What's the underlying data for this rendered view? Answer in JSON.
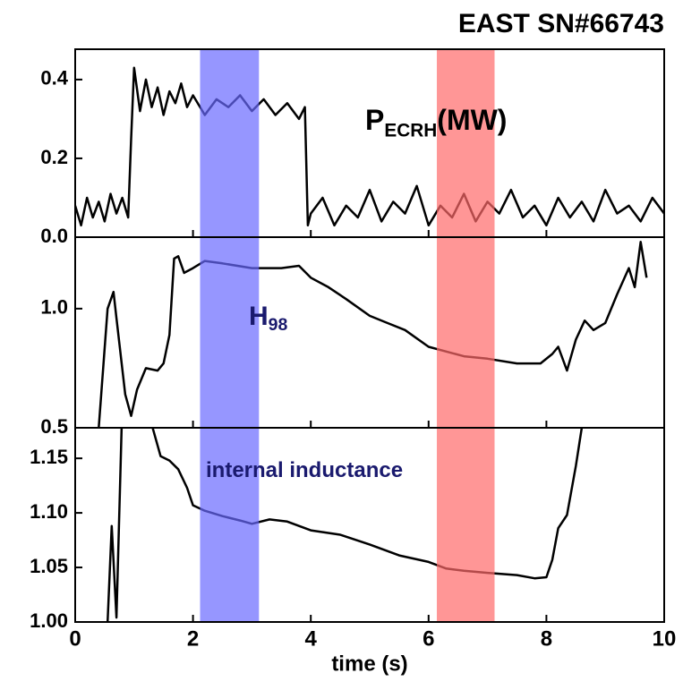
{
  "chart_data": [
    {
      "type": "line",
      "title": "EAST SN#66743",
      "annotation": {
        "text": "P",
        "sub": "ECRH",
        "after": "(MW)",
        "color": "#000000"
      },
      "xlim": [
        0,
        10
      ],
      "xticks": [
        0,
        2,
        4,
        6,
        8,
        10
      ],
      "ylim": [
        0,
        0.477
      ],
      "yticks": [
        {
          "value": 0,
          "label": "0.0"
        },
        0.2,
        0.4
      ],
      "spans": [
        {
          "x0": 2.12,
          "x1": 3.12,
          "color": "#6a6aff"
        },
        {
          "x0": 6.14,
          "x1": 7.12,
          "color": "#ff6a6a"
        }
      ],
      "series": [
        {
          "color": "#000000",
          "x": [
            0,
            0.1,
            0.2,
            0.3,
            0.4,
            0.5,
            0.6,
            0.7,
            0.8,
            0.9,
            0.95,
            1.0,
            1.1,
            1.2,
            1.3,
            1.4,
            1.5,
            1.6,
            1.7,
            1.8,
            1.9,
            2.0,
            2.2,
            2.4,
            2.6,
            2.8,
            3.0,
            3.2,
            3.4,
            3.6,
            3.8,
            3.9,
            3.95,
            4.0,
            4.2,
            4.4,
            4.6,
            4.8,
            5.0,
            5.2,
            5.4,
            5.6,
            5.8,
            6.0,
            6.2,
            6.4,
            6.6,
            6.8,
            7.0,
            7.2,
            7.4,
            7.6,
            7.8,
            8.0,
            8.2,
            8.4,
            8.6,
            8.8,
            9.0,
            9.2,
            9.4,
            9.6,
            9.8,
            10.0
          ],
          "values": [
            0.08,
            0.03,
            0.1,
            0.05,
            0.09,
            0.04,
            0.11,
            0.06,
            0.1,
            0.05,
            0.25,
            0.43,
            0.32,
            0.4,
            0.33,
            0.38,
            0.31,
            0.37,
            0.34,
            0.39,
            0.33,
            0.36,
            0.31,
            0.35,
            0.33,
            0.36,
            0.32,
            0.35,
            0.31,
            0.34,
            0.3,
            0.33,
            0.03,
            0.06,
            0.1,
            0.03,
            0.08,
            0.05,
            0.12,
            0.04,
            0.09,
            0.06,
            0.13,
            0.03,
            0.08,
            0.05,
            0.11,
            0.04,
            0.09,
            0.06,
            0.12,
            0.05,
            0.08,
            0.03,
            0.1,
            0.05,
            0.09,
            0.04,
            0.12,
            0.06,
            0.08,
            0.04,
            0.1,
            0.06
          ]
        }
      ]
    },
    {
      "type": "line",
      "annotation": {
        "text": "H",
        "sub": "98",
        "color": "#1a1a6e"
      },
      "xlim": [
        0,
        10
      ],
      "xticks": [
        0,
        2,
        4,
        6,
        8,
        10
      ],
      "ylim": [
        0.5,
        1.3
      ],
      "yticks": [
        0.5,
        {
          "value": 1,
          "label": "1.0"
        }
      ],
      "spans": [
        {
          "x0": 2.12,
          "x1": 3.12,
          "color": "#6a6aff"
        },
        {
          "x0": 6.14,
          "x1": 7.12,
          "color": "#ff6a6a"
        }
      ],
      "series": [
        {
          "color": "#000000",
          "x": [
            0.4,
            0.55,
            0.65,
            0.7,
            0.85,
            0.95,
            1.05,
            1.2,
            1.4,
            1.5,
            1.6,
            1.68,
            1.75,
            1.85,
            2.0,
            2.2,
            2.5,
            3.0,
            3.5,
            3.8,
            4.0,
            4.3,
            4.6,
            5.0,
            5.3,
            5.6,
            6.0,
            6.3,
            6.6,
            7.0,
            7.5,
            7.9,
            8.1,
            8.2,
            8.35,
            8.5,
            8.65,
            8.8,
            9.0,
            9.2,
            9.4,
            9.5,
            9.6,
            9.7
          ],
          "values": [
            0.5,
            1.0,
            1.07,
            0.96,
            0.64,
            0.55,
            0.66,
            0.75,
            0.74,
            0.77,
            0.89,
            1.21,
            1.22,
            1.15,
            1.17,
            1.2,
            1.19,
            1.17,
            1.17,
            1.18,
            1.13,
            1.09,
            1.04,
            0.97,
            0.94,
            0.91,
            0.84,
            0.82,
            0.8,
            0.79,
            0.77,
            0.77,
            0.81,
            0.84,
            0.74,
            0.87,
            0.95,
            0.91,
            0.94,
            1.06,
            1.17,
            1.09,
            1.28,
            1.13
          ]
        }
      ]
    },
    {
      "type": "line",
      "annotation": {
        "text": "internal inductance",
        "color": "#1a1a6e"
      },
      "xlabel": "time (s)",
      "xlim": [
        0,
        10
      ],
      "xticks": [
        0,
        2,
        4,
        6,
        8,
        10
      ],
      "ylim": [
        1.0,
        1.178
      ],
      "yticks": [
        {
          "value": 1,
          "label": "1.00"
        },
        1.05,
        {
          "value": 1.1,
          "label": "1.10"
        },
        1.15
      ],
      "spans": [
        {
          "x0": 2.12,
          "x1": 3.12,
          "color": "#6a6aff"
        },
        {
          "x0": 6.14,
          "x1": 7.12,
          "color": "#ff6a6a"
        }
      ],
      "series": [
        {
          "color": "#000000",
          "x": [
            0.55,
            0.62,
            0.7,
            0.8,
            1.2,
            1.45,
            1.6,
            1.75,
            1.9,
            2.0,
            2.2,
            2.5,
            2.8,
            3.0,
            3.3,
            3.6,
            4.0,
            4.5,
            5.0,
            5.5,
            6.0,
            6.3,
            6.6,
            7.0,
            7.5,
            7.8,
            8.0,
            8.1,
            8.2,
            8.35,
            8.5,
            8.6,
            8.65
          ],
          "values": [
            1.0,
            1.088,
            1.004,
            1.2,
            1.2,
            1.152,
            1.148,
            1.14,
            1.123,
            1.107,
            1.102,
            1.097,
            1.093,
            1.09,
            1.094,
            1.092,
            1.084,
            1.08,
            1.071,
            1.061,
            1.055,
            1.049,
            1.047,
            1.045,
            1.043,
            1.04,
            1.041,
            1.057,
            1.086,
            1.098,
            1.143,
            1.178,
            1.2
          ]
        }
      ]
    }
  ]
}
